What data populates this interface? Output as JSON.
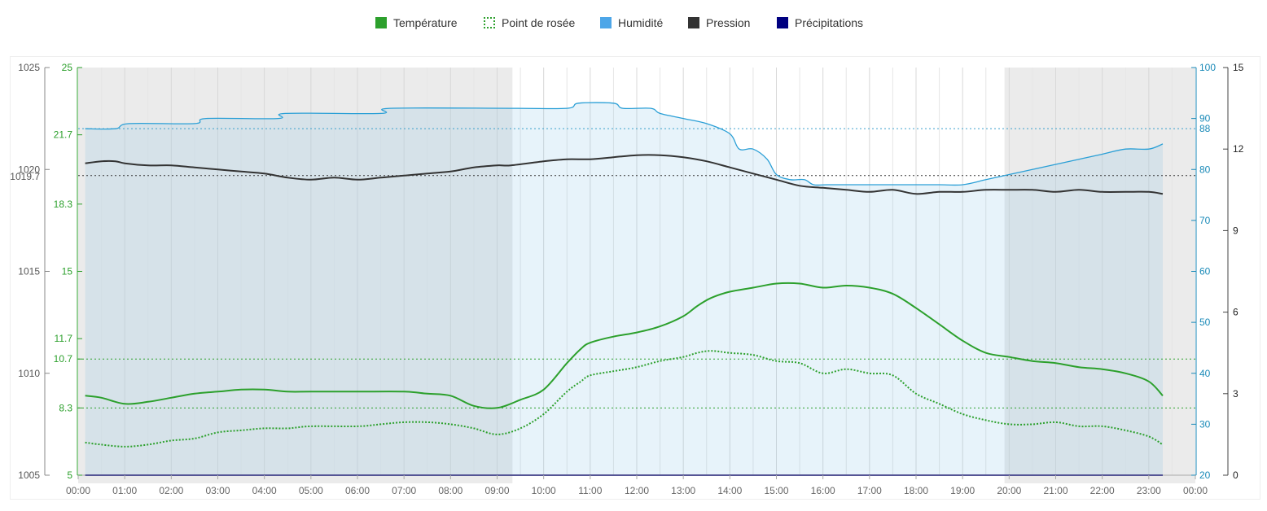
{
  "legend": [
    {
      "label": "Température",
      "color": "#2ca02c",
      "style": "solid"
    },
    {
      "label": "Point de rosée",
      "color": "#2ca02c",
      "style": "dotted"
    },
    {
      "label": "Humidité",
      "color": "#4da6e8",
      "style": "solid"
    },
    {
      "label": "Pression",
      "color": "#333333",
      "style": "solid"
    },
    {
      "label": "Précipitations",
      "color": "#000080",
      "style": "solid"
    }
  ],
  "chart_data": {
    "type": "line",
    "x_ticks": [
      "00:00",
      "01:00",
      "02:00",
      "03:00",
      "04:00",
      "05:00",
      "06:00",
      "07:00",
      "08:00",
      "09:00",
      "10:00",
      "11:00",
      "12:00",
      "13:00",
      "14:00",
      "15:00",
      "16:00",
      "17:00",
      "18:00",
      "19:00",
      "20:00",
      "21:00",
      "22:00",
      "23:00",
      "00:00"
    ],
    "night_shading": [
      [
        0,
        9.33
      ],
      [
        19.9,
        24
      ]
    ],
    "axes": {
      "pressure": {
        "ylim": [
          1005,
          1025
        ],
        "ticks": [
          "1005",
          "1010",
          "1015",
          "1020",
          "1025"
        ],
        "marker": "1019.7",
        "color": "#555555"
      },
      "temperature": {
        "ylim": [
          5,
          25
        ],
        "ticks": [
          "5",
          "8.3",
          "10.7",
          "11.7",
          "15",
          "18.3",
          "21.7",
          "25"
        ],
        "color": "#2ca02c"
      },
      "humidity": {
        "ylim": [
          20,
          100
        ],
        "ticks": [
          "20",
          "30",
          "40",
          "50",
          "60",
          "70",
          "80",
          "90",
          "100"
        ],
        "marker": "88",
        "color": "#1a8ab8"
      },
      "precipitation": {
        "ylim": [
          0,
          15
        ],
        "ticks": [
          "0",
          "3",
          "6",
          "9",
          "12",
          "15"
        ],
        "color": "#222222"
      }
    },
    "reference_lines": {
      "humidity": 88,
      "pressure": 1019.7,
      "temperature": [
        10.7,
        8.3
      ]
    },
    "series": [
      {
        "name": "Humidité",
        "axis": "humidity",
        "x": [
          0.15,
          0.8,
          1.1,
          2.5,
          2.75,
          4.3,
          4.45,
          6.5,
          6.7,
          9.3,
          10.5,
          10.75,
          11.5,
          11.7,
          12.3,
          12.5,
          13.0,
          13.5,
          14.0,
          14.2,
          14.5,
          14.8,
          15.0,
          15.3,
          15.6,
          15.8,
          16.1,
          17.0,
          18.0,
          18.5,
          19.0,
          19.5,
          20.0,
          20.5,
          21.0,
          21.5,
          22.0,
          22.5,
          23.0,
          23.3
        ],
        "y": [
          88,
          88,
          89,
          89,
          90,
          90,
          91,
          91,
          92,
          92,
          92,
          93,
          93,
          92,
          92,
          91,
          90,
          89,
          87,
          84,
          84,
          82,
          79,
          78,
          78,
          77,
          77,
          77,
          77,
          77,
          77,
          78,
          79,
          80,
          81,
          82,
          83,
          84,
          84,
          85
        ]
      },
      {
        "name": "Pression",
        "axis": "pressure",
        "x": [
          0.15,
          0.5,
          0.8,
          1.0,
          1.5,
          2.0,
          2.5,
          3.0,
          3.5,
          4.0,
          4.5,
          5.0,
          5.5,
          6.0,
          6.5,
          7.0,
          7.5,
          8.0,
          8.5,
          9.0,
          9.3,
          10.0,
          10.5,
          11.0,
          11.5,
          12.0,
          12.5,
          13.0,
          13.5,
          14.0,
          14.5,
          15.0,
          15.5,
          16.0,
          16.5,
          17.0,
          17.5,
          18.0,
          18.5,
          19.0,
          19.5,
          20.0,
          20.5,
          21.0,
          21.5,
          22.0,
          22.5,
          23.0,
          23.3
        ],
        "y": [
          1020.3,
          1020.4,
          1020.4,
          1020.3,
          1020.2,
          1020.2,
          1020.1,
          1020.0,
          1019.9,
          1019.8,
          1019.6,
          1019.5,
          1019.6,
          1019.5,
          1019.6,
          1019.7,
          1019.8,
          1019.9,
          1020.1,
          1020.2,
          1020.2,
          1020.4,
          1020.5,
          1020.5,
          1020.6,
          1020.7,
          1020.7,
          1020.6,
          1020.4,
          1020.1,
          1019.8,
          1019.5,
          1019.2,
          1019.1,
          1019.0,
          1018.9,
          1019.0,
          1018.8,
          1018.9,
          1018.9,
          1019.0,
          1019.0,
          1019.0,
          1018.9,
          1019.0,
          1018.9,
          1018.9,
          1018.9,
          1018.8
        ]
      },
      {
        "name": "Température",
        "axis": "temperature",
        "x": [
          0.15,
          0.5,
          1.0,
          1.5,
          2.0,
          2.5,
          3.0,
          3.5,
          4.0,
          4.5,
          5.0,
          6.0,
          7.0,
          7.5,
          8.0,
          8.5,
          9.0,
          9.5,
          10.0,
          10.5,
          10.8,
          11.0,
          11.5,
          12.0,
          12.5,
          13.0,
          13.3,
          13.6,
          14.0,
          14.5,
          15.0,
          15.5,
          16.0,
          16.5,
          17.0,
          17.5,
          18.0,
          18.5,
          19.0,
          19.5,
          20.0,
          20.5,
          21.0,
          21.5,
          22.0,
          22.5,
          23.0,
          23.3
        ],
        "y": [
          8.9,
          8.8,
          8.5,
          8.6,
          8.8,
          9.0,
          9.1,
          9.2,
          9.2,
          9.1,
          9.1,
          9.1,
          9.1,
          9.0,
          8.9,
          8.4,
          8.3,
          8.7,
          9.2,
          10.5,
          11.2,
          11.5,
          11.8,
          12.0,
          12.3,
          12.8,
          13.3,
          13.7,
          14.0,
          14.2,
          14.4,
          14.4,
          14.2,
          14.3,
          14.2,
          13.9,
          13.2,
          12.4,
          11.6,
          11.0,
          10.8,
          10.6,
          10.5,
          10.3,
          10.2,
          10.0,
          9.6,
          8.9
        ]
      },
      {
        "name": "Point de rosée",
        "axis": "temperature",
        "style": "dotted",
        "x": [
          0.15,
          0.5,
          1.0,
          1.5,
          2.0,
          2.5,
          3.0,
          3.5,
          4.0,
          4.5,
          5.0,
          6.0,
          6.5,
          7.0,
          7.5,
          8.0,
          8.5,
          9.0,
          9.5,
          10.0,
          10.5,
          10.8,
          11.0,
          11.5,
          12.0,
          12.5,
          13.0,
          13.3,
          13.6,
          14.0,
          14.5,
          15.0,
          15.5,
          16.0,
          16.5,
          17.0,
          17.5,
          18.0,
          18.5,
          19.0,
          19.5,
          20.0,
          20.5,
          21.0,
          21.5,
          22.0,
          22.5,
          23.0,
          23.3
        ],
        "y": [
          6.6,
          6.5,
          6.4,
          6.5,
          6.7,
          6.8,
          7.1,
          7.2,
          7.3,
          7.3,
          7.4,
          7.4,
          7.5,
          7.6,
          7.6,
          7.5,
          7.3,
          7.0,
          7.3,
          8.0,
          9.1,
          9.6,
          9.9,
          10.1,
          10.3,
          10.6,
          10.8,
          11.0,
          11.1,
          11.0,
          10.9,
          10.6,
          10.5,
          10.0,
          10.2,
          10.0,
          9.9,
          9.0,
          8.5,
          8.0,
          7.7,
          7.5,
          7.5,
          7.6,
          7.4,
          7.4,
          7.2,
          6.9,
          6.5
        ]
      },
      {
        "name": "Précipitations",
        "axis": "precipitation",
        "x": [
          0.15,
          23.3
        ],
        "y": [
          0,
          0
        ]
      }
    ]
  }
}
